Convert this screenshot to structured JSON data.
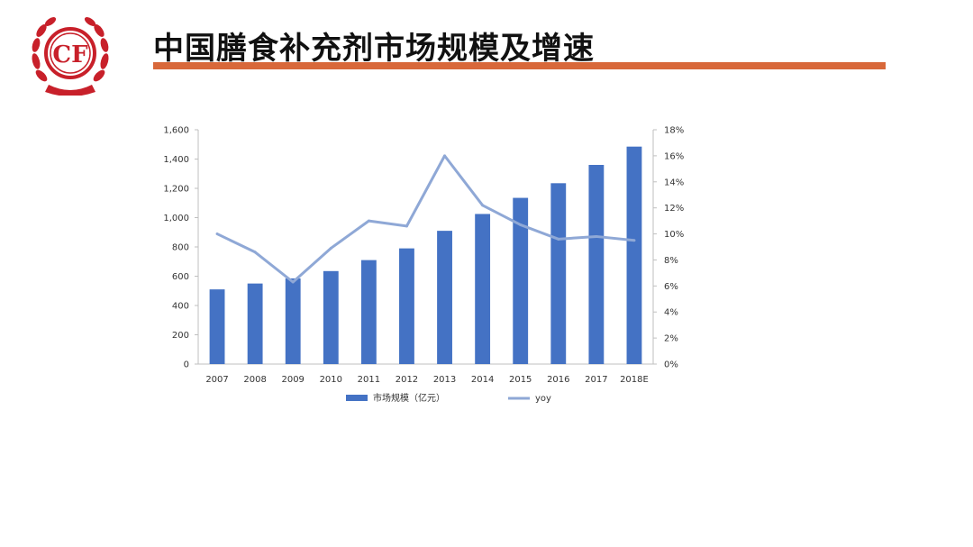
{
  "page": {
    "title": "中国膳食补充剂市场规模及增速",
    "logo_text": "CF",
    "colors": {
      "accent_rule": "#d8683a",
      "logo_red": "#c8202a"
    }
  },
  "chart_data": {
    "type": "bar",
    "categories": [
      "2007",
      "2008",
      "2009",
      "2010",
      "2011",
      "2012",
      "2013",
      "2014",
      "2015",
      "2016",
      "2017",
      "2018E"
    ],
    "series": [
      {
        "name": "市场规模（亿元）",
        "type": "bar",
        "axis": "left",
        "color": "#4472c4",
        "values": [
          510,
          550,
          585,
          635,
          710,
          790,
          910,
          1025,
          1135,
          1235,
          1360,
          1485
        ]
      },
      {
        "name": "yoy",
        "type": "line",
        "axis": "right",
        "color": "#8fa8d6",
        "values": [
          10.0,
          8.6,
          6.3,
          8.9,
          11.0,
          10.6,
          16.0,
          12.2,
          10.7,
          9.6,
          9.8,
          9.5
        ]
      }
    ],
    "ylim": [
      0,
      1600
    ],
    "yticks": [
      "0",
      "200",
      "400",
      "600",
      "800",
      "1,000",
      "1,200",
      "1,400",
      "1,600"
    ],
    "y2lim": [
      0,
      18
    ],
    "y2ticks": [
      "0%",
      "2%",
      "4%",
      "6%",
      "8%",
      "10%",
      "12%",
      "14%",
      "16%",
      "18%"
    ],
    "legend": "bottom",
    "grid": false
  }
}
